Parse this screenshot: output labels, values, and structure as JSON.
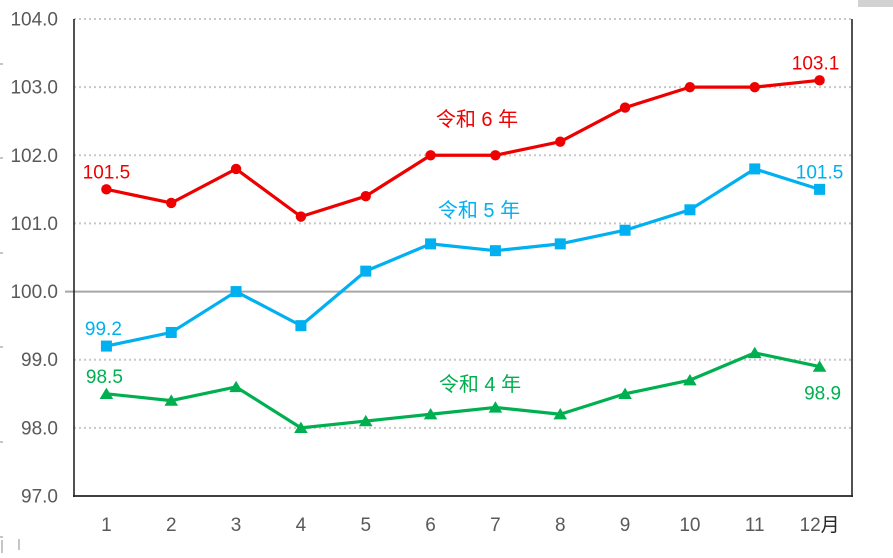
{
  "chart_data": {
    "type": "line",
    "title": "",
    "xlabel": "",
    "ylabel": "",
    "x_categories": [
      1,
      2,
      3,
      4,
      5,
      6,
      7,
      8,
      9,
      10,
      11,
      12
    ],
    "x_tick_labels": [
      "1",
      "2",
      "3",
      "4",
      "5",
      "6",
      "7",
      "8",
      "9",
      "10",
      "11",
      "12"
    ],
    "x_axis_unit": {
      "text": "月",
      "color": "#262626"
    },
    "y_ticks": [
      104.0,
      103.0,
      102.0,
      101.0,
      100.0,
      99.0,
      98.0,
      97.0
    ],
    "y_tick_labels": [
      "104.0",
      "103.0",
      "102.0",
      "101.0",
      "100.0",
      "99.0",
      "98.0",
      "97.0"
    ],
    "ylim": [
      97.0,
      104.0
    ],
    "grid": "dotted-horizontal",
    "reference_line": 100.0,
    "legend_position": "inline-series-labels",
    "series": [
      {
        "name": "令和6年",
        "display_label": "令和 6 年",
        "color": "#ee0000",
        "marker": "circle",
        "values": [
          101.5,
          101.3,
          101.8,
          101.1,
          101.4,
          102.0,
          102.0,
          102.2,
          102.7,
          103.0,
          103.0,
          103.1
        ],
        "label_pos": {
          "x": 477,
          "y": 126
        },
        "data_labels": [
          {
            "index": 0,
            "text": "101.5",
            "position": "above"
          },
          {
            "index": 11,
            "text": "103.1",
            "position": "above",
            "dx": -4
          }
        ]
      },
      {
        "name": "令和5年",
        "display_label": "令和 5 年",
        "color": "#00b0f0",
        "marker": "square",
        "values": [
          99.2,
          99.4,
          100.0,
          99.5,
          100.3,
          100.7,
          100.6,
          100.7,
          100.9,
          101.2,
          101.8,
          101.5
        ],
        "label_pos": {
          "x": 479,
          "y": 217
        },
        "data_labels": [
          {
            "index": 0,
            "text": "99.2",
            "position": "above",
            "dx": -3
          },
          {
            "index": 11,
            "text": "101.5",
            "position": "above"
          }
        ]
      },
      {
        "name": "令和4年",
        "display_label": "令和 4 年",
        "color": "#00b050",
        "marker": "triangle",
        "values": [
          98.5,
          98.4,
          98.6,
          98.0,
          98.1,
          98.2,
          98.3,
          98.2,
          98.5,
          98.7,
          99.1,
          98.9
        ],
        "label_pos": {
          "x": 480,
          "y": 391
        },
        "data_labels": [
          {
            "index": 0,
            "text": "98.5",
            "position": "above",
            "dx": -2
          },
          {
            "index": 11,
            "text": "98.9",
            "position": "below",
            "dx": 3
          }
        ]
      }
    ],
    "colors": {
      "axis_text": "#595959",
      "grid": "#c8c8c8",
      "reference_line": "#a6a6a6",
      "axis_border": "#262626"
    }
  }
}
